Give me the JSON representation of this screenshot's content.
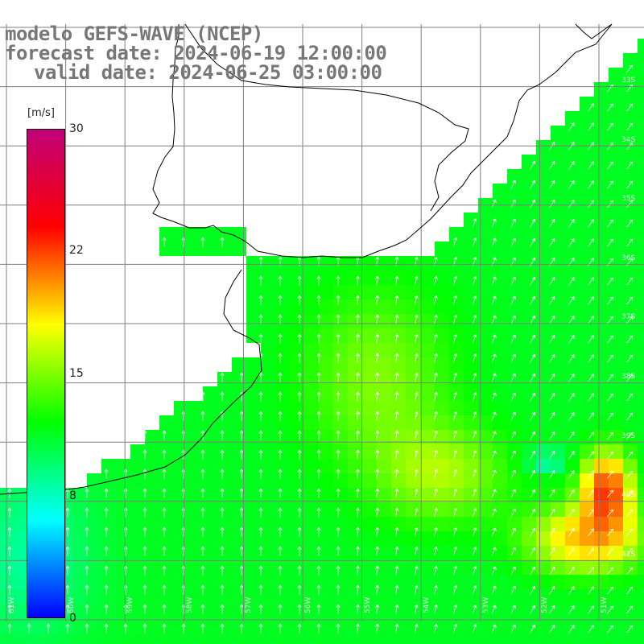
{
  "title": {
    "model": "modelo GEFS-WAVE (NCEP)",
    "forecast": "forecast date: 2024-06-19 12:00:00",
    "valid": "valid date: 2024-06-25 03:00:00"
  },
  "colorbar": {
    "unit": "[m/s]",
    "ticks": [
      "30",
      "22",
      "15",
      "8",
      "0"
    ],
    "colors": [
      "#0000ff",
      "#00ffff",
      "#00ff00",
      "#ffff00",
      "#ff0000",
      "#c0007a"
    ]
  },
  "map": {
    "land_color": "#ffffff",
    "coast_color": "#000000",
    "grid_color": "#888888",
    "lat_labels": [
      "33S",
      "34S",
      "35S",
      "36S",
      "37S",
      "38S",
      "39S",
      "40S",
      "41S"
    ],
    "lon_labels": [
      "61W",
      "60W",
      "59W",
      "58W",
      "57W",
      "56W",
      "55W",
      "54W",
      "53W",
      "52W",
      "51W"
    ]
  },
  "chart_data": {
    "type": "heatmap",
    "title": "modelo GEFS-WAVE (NCEP)",
    "variable": "wind speed with direction arrows",
    "unit": "[m/s]",
    "color_range": [
      0,
      30
    ],
    "arrow_direction": "mostly toward north / north-east",
    "field_summary": "offshore wind mostly 10-16 m/s, yellow core near 55W 36.5S, strongest 20-23 m/s near 51W 39S"
  }
}
